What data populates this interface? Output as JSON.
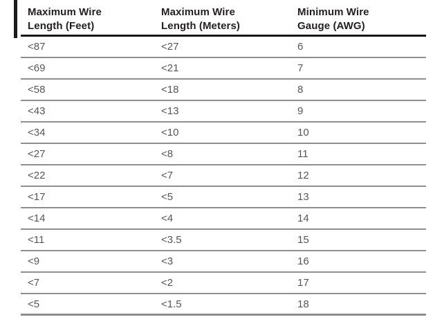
{
  "decor": {
    "margin_bar_color": "#1c1c1c"
  },
  "colors": {
    "header_text": "#231f20",
    "body_text": "#55565a",
    "header_rule": "#161616",
    "row_rule": "#8e8e8e",
    "page_bg": "#ffffff"
  },
  "table": {
    "columns": [
      {
        "line1": "Maximum Wire",
        "line2": "Length (Feet)"
      },
      {
        "line1": "Maximum Wire",
        "line2": "Length (Meters)"
      },
      {
        "line1": "Minimum Wire",
        "line2": "Gauge (AWG)"
      }
    ],
    "rows": [
      [
        "<87",
        "<27",
        "6"
      ],
      [
        "<69",
        "<21",
        "7"
      ],
      [
        "<58",
        "<18",
        "8"
      ],
      [
        "<43",
        "<13",
        "9"
      ],
      [
        "<34",
        "<10",
        "10"
      ],
      [
        "<27",
        "<8",
        "11"
      ],
      [
        "<22",
        "<7",
        "12"
      ],
      [
        "<17",
        "<5",
        "13"
      ],
      [
        "<14",
        "<4",
        "14"
      ],
      [
        "<11",
        "<3.5",
        "15"
      ],
      [
        "<9",
        "<3",
        "16"
      ],
      [
        "<7",
        "<2",
        "17"
      ],
      [
        "<5",
        "<1.5",
        "18"
      ]
    ]
  }
}
